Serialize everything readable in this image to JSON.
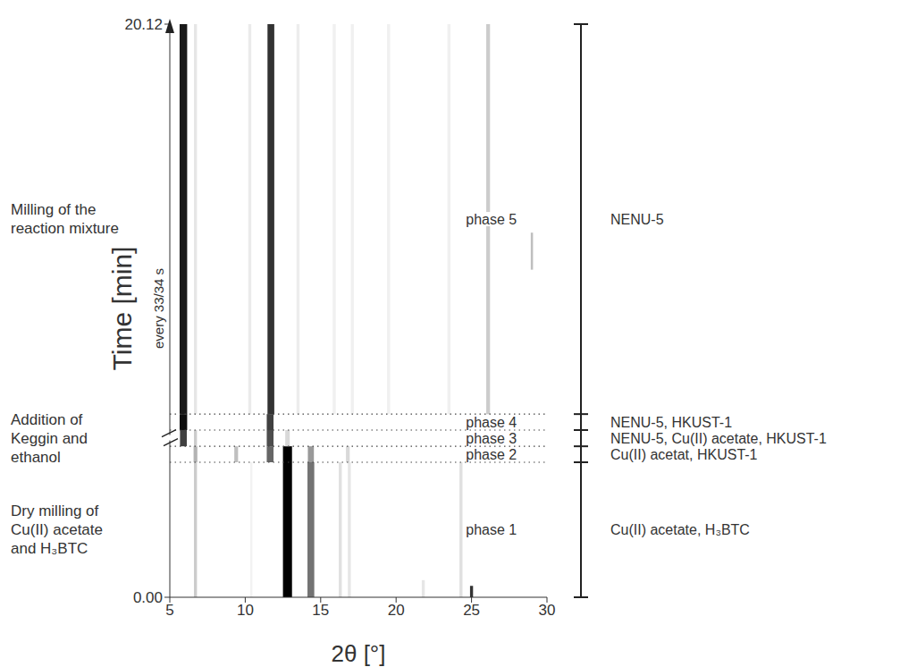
{
  "chart_data": {
    "type": "heatmap",
    "x_label": "2θ [°]",
    "y_label": "Time [min]",
    "y_sublabel": "every 33/34 s",
    "xlim": [
      5,
      30
    ],
    "xticks": [
      5,
      10,
      15,
      20,
      25,
      30
    ],
    "ylim": [
      0,
      20.12
    ],
    "yticks": [
      {
        "value": 0,
        "label": "0.00"
      },
      {
        "value": 20.12,
        "label": "20.12"
      }
    ],
    "grid": false,
    "axis_break": 5.6,
    "steps": [
      {
        "text": "Dry milling of Cu(II) acetate and H₃BTC",
        "start": 0,
        "end": 4.74
      },
      {
        "text": "Addition of Keggin and ethanol",
        "start": 4.74,
        "end": 6.43
      },
      {
        "text": "Milling of the reaction mixture",
        "start": 6.43,
        "end": 20.12
      }
    ],
    "phases": [
      {
        "name": "phase 1",
        "start": 0,
        "end": 4.74,
        "composition": "Cu(II) acetate, H₃BTC"
      },
      {
        "name": "phase 2",
        "start": 4.74,
        "end": 5.3,
        "composition": "Cu(II) acetat, HKUST-1"
      },
      {
        "name": "phase 3",
        "start": 5.3,
        "end": 5.87,
        "composition": "NENU-5, Cu(II) acetate, HKUST-1"
      },
      {
        "name": "phase 4",
        "start": 5.87,
        "end": 6.43,
        "composition": "NENU-5, HKUST-1"
      },
      {
        "name": "phase 5",
        "start": 6.43,
        "end": 20.12,
        "composition": "NENU-5"
      }
    ],
    "peaks": [
      {
        "two_theta": 12.8,
        "width": 0.6,
        "start": 0,
        "end": 4.74,
        "intensity": 1.0
      },
      {
        "two_theta": 14.35,
        "width": 0.45,
        "start": 0,
        "end": 4.74,
        "intensity": 0.55
      },
      {
        "two_theta": 6.7,
        "width": 0.2,
        "start": 0,
        "end": 4.74,
        "intensity": 0.2
      },
      {
        "two_theta": 16.3,
        "width": 0.2,
        "start": 0,
        "end": 4.74,
        "intensity": 0.12
      },
      {
        "two_theta": 16.9,
        "width": 0.2,
        "start": 0,
        "end": 4.74,
        "intensity": 0.1
      },
      {
        "two_theta": 24.3,
        "width": 0.2,
        "start": 0,
        "end": 4.74,
        "intensity": 0.12
      },
      {
        "two_theta": 25.0,
        "width": 0.2,
        "start": 0,
        "end": 0.4,
        "intensity": 0.8
      },
      {
        "two_theta": 21.8,
        "width": 0.2,
        "start": 0,
        "end": 0.6,
        "intensity": 0.1
      },
      {
        "two_theta": 10.4,
        "width": 0.15,
        "start": 0,
        "end": 4.74,
        "intensity": 0.05
      },
      {
        "two_theta": 11.65,
        "width": 0.45,
        "start": 4.74,
        "end": 5.3,
        "intensity": 0.6
      },
      {
        "two_theta": 12.8,
        "width": 0.6,
        "start": 4.74,
        "end": 5.3,
        "intensity": 1.0
      },
      {
        "two_theta": 14.35,
        "width": 0.4,
        "start": 4.74,
        "end": 5.3,
        "intensity": 0.4
      },
      {
        "two_theta": 9.4,
        "width": 0.25,
        "start": 4.74,
        "end": 5.3,
        "intensity": 0.25
      },
      {
        "two_theta": 6.7,
        "width": 0.25,
        "start": 4.74,
        "end": 5.3,
        "intensity": 0.3
      },
      {
        "two_theta": 16.8,
        "width": 0.25,
        "start": 4.74,
        "end": 5.3,
        "intensity": 0.15
      },
      {
        "two_theta": 5.9,
        "width": 0.45,
        "start": 5.3,
        "end": 5.87,
        "intensity": 0.75
      },
      {
        "two_theta": 11.65,
        "width": 0.45,
        "start": 5.3,
        "end": 5.87,
        "intensity": 0.7
      },
      {
        "two_theta": 6.7,
        "width": 0.2,
        "start": 5.3,
        "end": 5.87,
        "intensity": 0.2
      },
      {
        "two_theta": 12.8,
        "width": 0.3,
        "start": 5.3,
        "end": 5.87,
        "intensity": 0.15
      },
      {
        "two_theta": 5.9,
        "width": 0.5,
        "start": 5.87,
        "end": 6.43,
        "intensity": 0.95
      },
      {
        "two_theta": 11.65,
        "width": 0.45,
        "start": 5.87,
        "end": 6.43,
        "intensity": 0.75
      },
      {
        "two_theta": 5.9,
        "width": 0.5,
        "start": 6.43,
        "end": 20.12,
        "intensity": 0.9
      },
      {
        "two_theta": 11.7,
        "width": 0.45,
        "start": 6.43,
        "end": 20.12,
        "intensity": 0.8
      },
      {
        "two_theta": 6.7,
        "width": 0.2,
        "start": 6.43,
        "end": 20.12,
        "intensity": 0.1
      },
      {
        "two_theta": 10.3,
        "width": 0.2,
        "start": 6.43,
        "end": 20.12,
        "intensity": 0.08
      },
      {
        "two_theta": 13.5,
        "width": 0.2,
        "start": 6.43,
        "end": 20.12,
        "intensity": 0.07
      },
      {
        "two_theta": 15.9,
        "width": 0.2,
        "start": 6.43,
        "end": 20.12,
        "intensity": 0.06
      },
      {
        "two_theta": 17.1,
        "width": 0.2,
        "start": 6.43,
        "end": 20.12,
        "intensity": 0.06
      },
      {
        "two_theta": 19.5,
        "width": 0.2,
        "start": 6.43,
        "end": 20.12,
        "intensity": 0.06
      },
      {
        "two_theta": 23.5,
        "width": 0.2,
        "start": 6.43,
        "end": 20.12,
        "intensity": 0.06
      },
      {
        "two_theta": 26.1,
        "width": 0.25,
        "start": 6.43,
        "end": 20.12,
        "intensity": 0.2
      },
      {
        "two_theta": 29.0,
        "width": 0.15,
        "start": 11.5,
        "end": 12.8,
        "intensity": 0.25
      }
    ]
  }
}
